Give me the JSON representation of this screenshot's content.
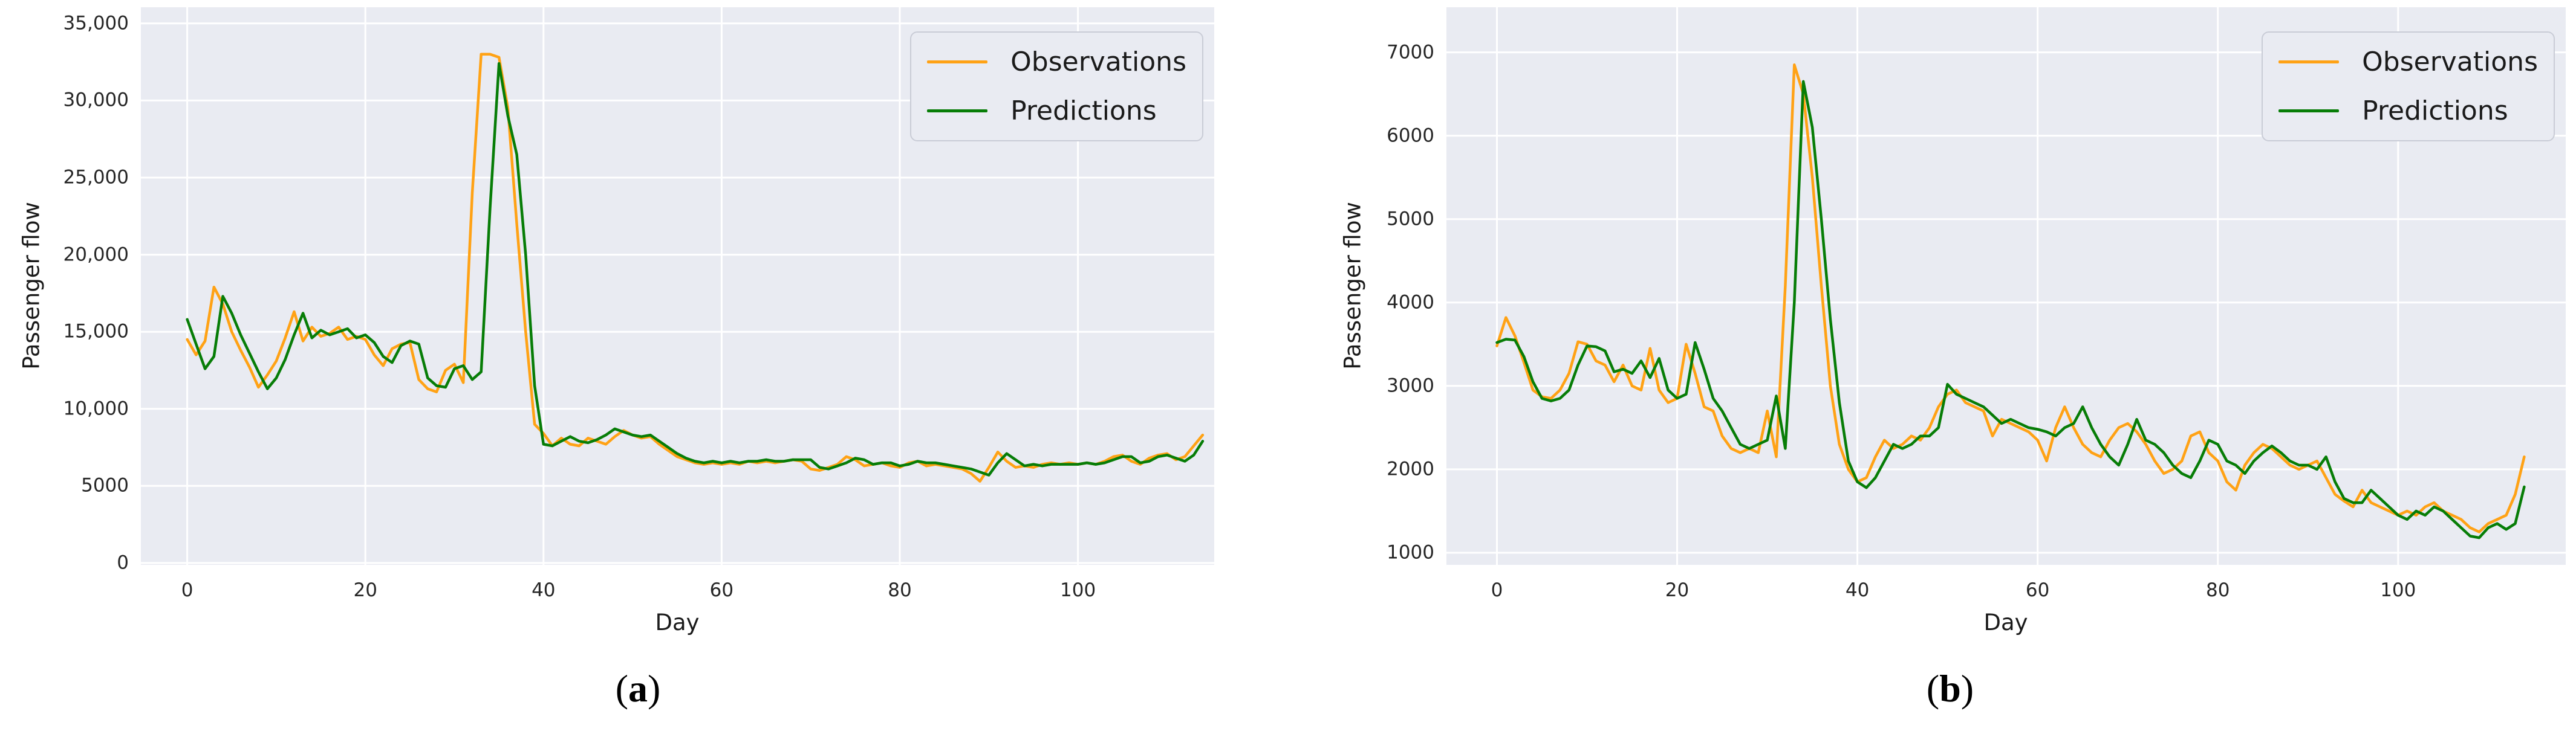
{
  "figure": {
    "background": "#ffffff",
    "plot_background": "#e9ebf2",
    "grid_color": "#ffffff",
    "tick_label_color": "#262626",
    "axis_title_color": "#1a1a1a",
    "legend_border_color": "#c9ccd6",
    "legend_background": "#e9ebf2",
    "observations_color": "#ffa215",
    "predictions_color": "#077d07"
  },
  "chart_data": [
    {
      "id": "a",
      "type": "line",
      "caption": {
        "prefix": "(",
        "letter": "a",
        "suffix": ")"
      },
      "xlabel": "Day",
      "ylabel": "Passenger flow",
      "grid": true,
      "legend_position": "upper right",
      "xlim": [
        -5.2,
        115.3
      ],
      "ylim": [
        -120,
        36050
      ],
      "x_ticks": [
        0,
        20,
        40,
        60,
        80,
        100
      ],
      "y_ticks": [
        {
          "value": 0,
          "label": "0"
        },
        {
          "value": 5000,
          "label": "5000"
        },
        {
          "value": 10000,
          "label": "10,000"
        },
        {
          "value": 15000,
          "label": "15,000"
        },
        {
          "value": 20000,
          "label": "20,000"
        },
        {
          "value": 25000,
          "label": "25,000"
        },
        {
          "value": 30000,
          "label": "30,000"
        },
        {
          "value": 35000,
          "label": "35,000"
        }
      ],
      "x": [
        0,
        1,
        2,
        3,
        4,
        5,
        6,
        7,
        8,
        9,
        10,
        11,
        12,
        13,
        14,
        15,
        16,
        17,
        18,
        19,
        20,
        21,
        22,
        23,
        24,
        25,
        26,
        27,
        28,
        29,
        30,
        31,
        32,
        33,
        34,
        35,
        36,
        37,
        38,
        39,
        40,
        41,
        42,
        43,
        44,
        45,
        46,
        47,
        48,
        49,
        50,
        51,
        52,
        53,
        54,
        55,
        56,
        57,
        58,
        59,
        60,
        61,
        62,
        63,
        64,
        65,
        66,
        67,
        68,
        69,
        70,
        71,
        72,
        73,
        74,
        75,
        76,
        77,
        78,
        79,
        80,
        81,
        82,
        83,
        84,
        85,
        86,
        87,
        88,
        89,
        90,
        91,
        92,
        93,
        94,
        95,
        96,
        97,
        98,
        99,
        100,
        101,
        102,
        103,
        104,
        105,
        106,
        107,
        108,
        109,
        110,
        111,
        112,
        113,
        114
      ],
      "series": [
        {
          "name": "Observations",
          "color": "#ffa215",
          "values": [
            14500,
            13500,
            14400,
            17900,
            16800,
            15000,
            13800,
            12700,
            11400,
            12200,
            13100,
            14600,
            16300,
            14400,
            15300,
            14700,
            14900,
            15300,
            14500,
            14700,
            14500,
            13500,
            12800,
            13900,
            14200,
            14300,
            11900,
            11300,
            11100,
            12500,
            12900,
            11700,
            24000,
            33000,
            33000,
            32800,
            29500,
            22000,
            15000,
            9000,
            8400,
            7600,
            8100,
            7700,
            7600,
            8100,
            7900,
            7700,
            8200,
            8600,
            8300,
            8100,
            8200,
            7700,
            7300,
            6900,
            6700,
            6500,
            6400,
            6500,
            6400,
            6500,
            6400,
            6600,
            6500,
            6600,
            6500,
            6600,
            6700,
            6600,
            6100,
            6000,
            6200,
            6400,
            6900,
            6700,
            6300,
            6400,
            6500,
            6300,
            6200,
            6500,
            6600,
            6300,
            6400,
            6300,
            6200,
            6100,
            5800,
            5300,
            6200,
            7200,
            6600,
            6200,
            6300,
            6200,
            6400,
            6500,
            6400,
            6500,
            6400,
            6500,
            6400,
            6600,
            6900,
            7000,
            6600,
            6400,
            6800,
            7000,
            7100,
            6700,
            6900,
            7600,
            8300
          ]
        },
        {
          "name": "Predictions",
          "color": "#077d07",
          "values": [
            15800,
            14200,
            12600,
            13400,
            17300,
            16200,
            14800,
            13600,
            12400,
            11300,
            12000,
            13200,
            14800,
            16200,
            14600,
            15100,
            14800,
            15000,
            15200,
            14600,
            14800,
            14300,
            13400,
            13000,
            14100,
            14400,
            14200,
            12000,
            11500,
            11400,
            12600,
            12800,
            11900,
            12400,
            23000,
            32400,
            29000,
            26500,
            20000,
            11500,
            7700,
            7600,
            7900,
            8200,
            7900,
            7800,
            8000,
            8300,
            8700,
            8500,
            8300,
            8200,
            8300,
            7900,
            7500,
            7100,
            6800,
            6600,
            6500,
            6600,
            6500,
            6600,
            6500,
            6600,
            6600,
            6700,
            6600,
            6600,
            6700,
            6700,
            6700,
            6200,
            6100,
            6300,
            6500,
            6800,
            6700,
            6400,
            6500,
            6500,
            6300,
            6400,
            6600,
            6500,
            6500,
            6400,
            6300,
            6200,
            6100,
            5900,
            5700,
            6500,
            7100,
            6700,
            6300,
            6400,
            6300,
            6400,
            6400,
            6400,
            6400,
            6500,
            6400,
            6500,
            6700,
            6900,
            6900,
            6500,
            6600,
            6900,
            7000,
            6800,
            6600,
            7000,
            7900
          ]
        }
      ]
    },
    {
      "id": "b",
      "type": "line",
      "caption": {
        "prefix": "(",
        "letter": "b",
        "suffix": ")"
      },
      "xlabel": "Day",
      "ylabel": "Passenger flow",
      "grid": true,
      "legend_position": "upper right",
      "xlim": [
        -5.6,
        118.6
      ],
      "ylim": [
        855,
        7540
      ],
      "x_ticks": [
        0,
        20,
        40,
        60,
        80,
        100
      ],
      "y_ticks": [
        {
          "value": 1000,
          "label": "1000"
        },
        {
          "value": 2000,
          "label": "2000"
        },
        {
          "value": 3000,
          "label": "3000"
        },
        {
          "value": 4000,
          "label": "4000"
        },
        {
          "value": 5000,
          "label": "5000"
        },
        {
          "value": 6000,
          "label": "6000"
        },
        {
          "value": 7000,
          "label": "7000"
        }
      ],
      "x": [
        0,
        1,
        2,
        3,
        4,
        5,
        6,
        7,
        8,
        9,
        10,
        11,
        12,
        13,
        14,
        15,
        16,
        17,
        18,
        19,
        20,
        21,
        22,
        23,
        24,
        25,
        26,
        27,
        28,
        29,
        30,
        31,
        32,
        33,
        34,
        35,
        36,
        37,
        38,
        39,
        40,
        41,
        42,
        43,
        44,
        45,
        46,
        47,
        48,
        49,
        50,
        51,
        52,
        53,
        54,
        55,
        56,
        57,
        58,
        59,
        60,
        61,
        62,
        63,
        64,
        65,
        66,
        67,
        68,
        69,
        70,
        71,
        72,
        73,
        74,
        75,
        76,
        77,
        78,
        79,
        80,
        81,
        82,
        83,
        84,
        85,
        86,
        87,
        88,
        89,
        90,
        91,
        92,
        93,
        94,
        95,
        96,
        97,
        98,
        99,
        100,
        101,
        102,
        103,
        104,
        105,
        106,
        107,
        108,
        109,
        110,
        111,
        112,
        113,
        114
      ],
      "series": [
        {
          "name": "Observations",
          "color": "#ffa215",
          "values": [
            3480,
            3820,
            3600,
            3280,
            2950,
            2870,
            2850,
            2950,
            3150,
            3530,
            3500,
            3300,
            3250,
            3050,
            3250,
            3000,
            2950,
            3450,
            2950,
            2800,
            2850,
            3500,
            3150,
            2750,
            2700,
            2400,
            2250,
            2200,
            2250,
            2200,
            2700,
            2150,
            4200,
            6850,
            6500,
            5500,
            4200,
            3000,
            2300,
            2000,
            1850,
            1900,
            2150,
            2350,
            2250,
            2300,
            2400,
            2350,
            2500,
            2750,
            2900,
            2950,
            2800,
            2750,
            2700,
            2400,
            2600,
            2550,
            2500,
            2450,
            2350,
            2100,
            2500,
            2750,
            2500,
            2300,
            2200,
            2150,
            2350,
            2500,
            2550,
            2450,
            2300,
            2100,
            1950,
            2000,
            2100,
            2400,
            2450,
            2200,
            2100,
            1850,
            1750,
            2050,
            2200,
            2300,
            2250,
            2150,
            2050,
            2000,
            2050,
            2100,
            1900,
            1700,
            1620,
            1550,
            1750,
            1600,
            1550,
            1500,
            1450,
            1500,
            1450,
            1550,
            1600,
            1500,
            1450,
            1400,
            1300,
            1250,
            1350,
            1400,
            1450,
            1700,
            2150
          ]
        },
        {
          "name": "Predictions",
          "color": "#077d07",
          "values": [
            3520,
            3560,
            3550,
            3350,
            3050,
            2850,
            2820,
            2850,
            2950,
            3250,
            3480,
            3470,
            3420,
            3170,
            3200,
            3150,
            3300,
            3100,
            3330,
            2950,
            2850,
            2900,
            3520,
            3200,
            2850,
            2700,
            2500,
            2300,
            2250,
            2300,
            2350,
            2880,
            2250,
            4000,
            6650,
            6100,
            5000,
            3800,
            2800,
            2100,
            1850,
            1780,
            1900,
            2100,
            2300,
            2250,
            2300,
            2400,
            2400,
            2500,
            3020,
            2900,
            2850,
            2800,
            2750,
            2650,
            2550,
            2600,
            2550,
            2500,
            2480,
            2450,
            2400,
            2500,
            2550,
            2750,
            2500,
            2300,
            2150,
            2050,
            2300,
            2600,
            2350,
            2300,
            2200,
            2050,
            1950,
            1900,
            2100,
            2350,
            2300,
            2100,
            2050,
            1950,
            2100,
            2200,
            2280,
            2200,
            2100,
            2050,
            2050,
            2000,
            2150,
            1850,
            1650,
            1600,
            1600,
            1750,
            1650,
            1550,
            1450,
            1400,
            1500,
            1450,
            1550,
            1500,
            1400,
            1300,
            1200,
            1180,
            1300,
            1350,
            1280,
            1350,
            1790
          ]
        }
      ]
    }
  ]
}
